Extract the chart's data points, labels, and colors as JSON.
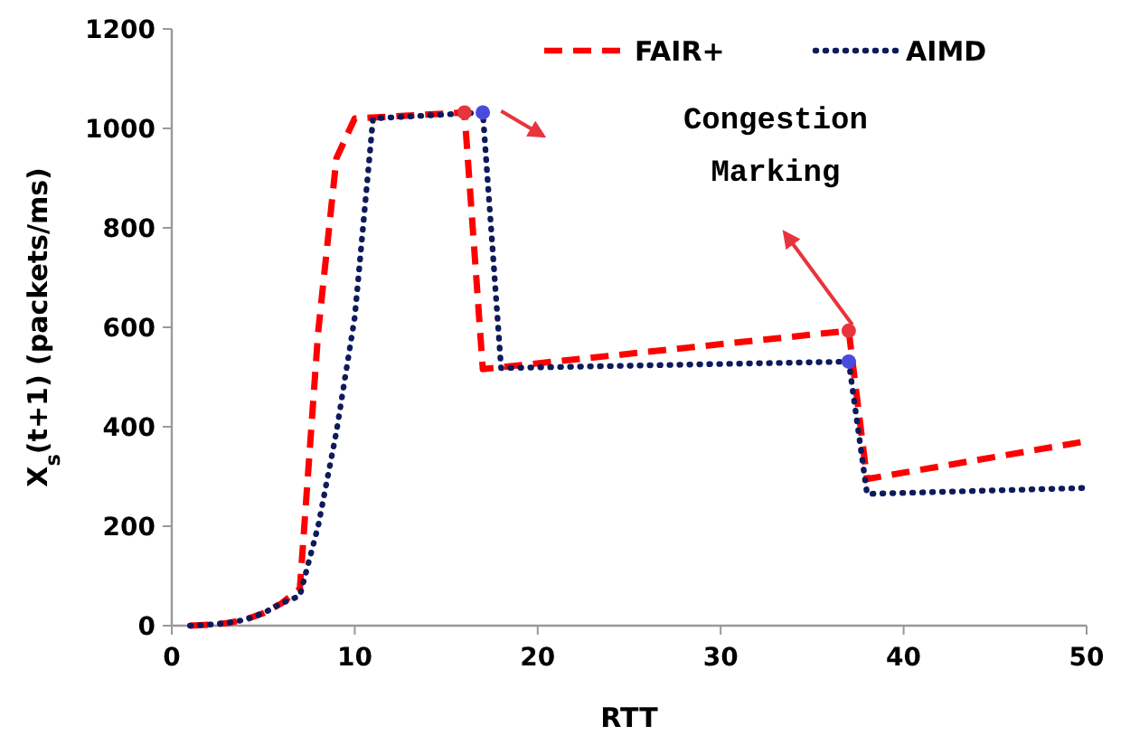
{
  "chart_data": {
    "type": "line",
    "xlabel": "RTT",
    "ylabel": "X$_{s}$(t+1)  (packets/ms)",
    "xlim": [
      0,
      50
    ],
    "ylim": [
      0,
      1200
    ],
    "xticks": [
      0,
      10,
      20,
      30,
      40,
      50
    ],
    "yticks": [
      0,
      200,
      400,
      600,
      800,
      1000,
      1200
    ],
    "grid": false,
    "legend": "top right",
    "annotations": [
      "Congestion Marking"
    ],
    "series": [
      {
        "name": "FAIR+",
        "color": "#ff0000",
        "line_style": "dashed",
        "marker": "none",
        "x": [
          1,
          2,
          3,
          4,
          5,
          6,
          7,
          8,
          9,
          10,
          16,
          17,
          37,
          38,
          50
        ],
        "values": [
          0,
          2,
          5,
          12,
          25,
          45,
          74,
          590,
          940,
          1020,
          1032,
          516,
          593,
          295,
          371
        ]
      },
      {
        "name": "AIMD",
        "color": "#0d1a5c",
        "line_style": "dotted",
        "marker": "none",
        "x": [
          1,
          2,
          3,
          4,
          5,
          6,
          7,
          8,
          9,
          10,
          11,
          17,
          18,
          37,
          38,
          50
        ],
        "values": [
          0,
          2,
          5,
          12,
          25,
          45,
          60,
          200,
          390,
          620,
          1020,
          1032,
          518,
          531,
          265,
          277
        ]
      },
      {
        "type": "scatter",
        "color": "#e8343c",
        "marker": "circle",
        "x": [
          16,
          37
        ],
        "values": [
          1032,
          593
        ]
      },
      {
        "type": "scatter",
        "color": "#4a4adc",
        "marker": "circle",
        "x": [
          17,
          37
        ],
        "values": [
          1032,
          531
        ]
      }
    ]
  }
}
